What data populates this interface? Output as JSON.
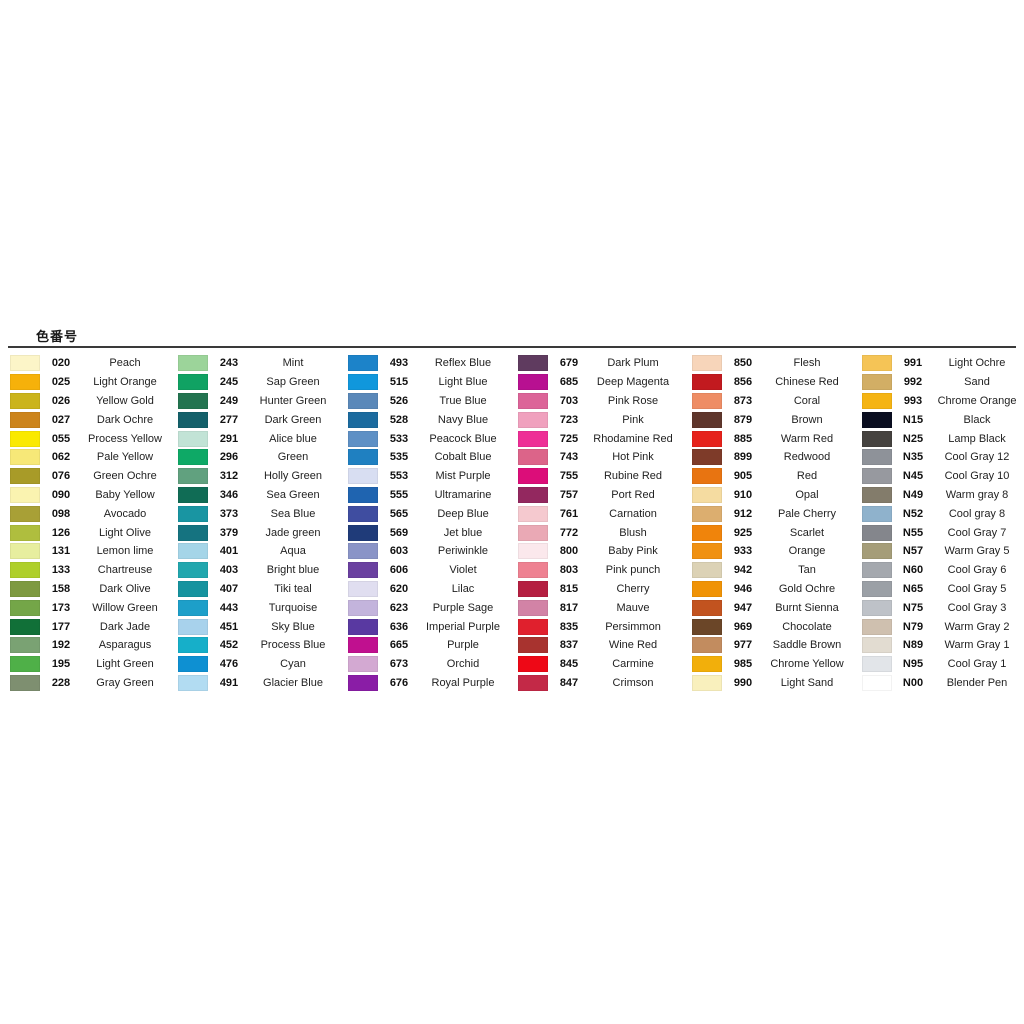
{
  "header": {
    "title": "色番号"
  },
  "styles": {
    "rule_color": "#3a3a3a",
    "background": "#ffffff",
    "text_color": "#1f1f1f"
  },
  "chart_data": {
    "type": "table",
    "title": "色番号",
    "description": "Marker color number chart: 6 columns × 18 rows, each row shows swatch color, color code, color name",
    "columns": [
      {
        "entries": [
          {
            "code": "020",
            "name": "Peach",
            "color": "#FCF5C8"
          },
          {
            "code": "025",
            "name": "Light Orange",
            "color": "#F6B10A"
          },
          {
            "code": "026",
            "name": "Yellow Gold",
            "color": "#CBB41C"
          },
          {
            "code": "027",
            "name": "Dark Ochre",
            "color": "#CC841C"
          },
          {
            "code": "055",
            "name": "Process Yellow",
            "color": "#FAE900"
          },
          {
            "code": "062",
            "name": "Pale Yellow",
            "color": "#F7E878"
          },
          {
            "code": "076",
            "name": "Green Ochre",
            "color": "#A89B28"
          },
          {
            "code": "090",
            "name": "Baby Yellow",
            "color": "#FAF3B0"
          },
          {
            "code": "098",
            "name": "Avocado",
            "color": "#A8A036"
          },
          {
            "code": "126",
            "name": "Light Olive",
            "color": "#AFBE3E"
          },
          {
            "code": "131",
            "name": "Lemon lime",
            "color": "#E7EE9F"
          },
          {
            "code": "133",
            "name": "Chartreuse",
            "color": "#AFCF2A"
          },
          {
            "code": "158",
            "name": "Dark Olive",
            "color": "#7E9A41"
          },
          {
            "code": "173",
            "name": "Willow Green",
            "color": "#74A648"
          },
          {
            "code": "177",
            "name": "Dark Jade",
            "color": "#117038"
          },
          {
            "code": "192",
            "name": "Asparagus",
            "color": "#7AA273"
          },
          {
            "code": "195",
            "name": "Light Green",
            "color": "#4FB048"
          },
          {
            "code": "228",
            "name": "Gray Green",
            "color": "#7E8F70"
          }
        ]
      },
      {
        "entries": [
          {
            "code": "243",
            "name": "Mint",
            "color": "#9CD49A"
          },
          {
            "code": "245",
            "name": "Sap Green",
            "color": "#10A263"
          },
          {
            "code": "249",
            "name": "Hunter Green",
            "color": "#237450"
          },
          {
            "code": "277",
            "name": "Dark Green",
            "color": "#14606A"
          },
          {
            "code": "291",
            "name": "Alice blue",
            "color": "#C2E3D6"
          },
          {
            "code": "296",
            "name": "Green",
            "color": "#0EA966"
          },
          {
            "code": "312",
            "name": "Holly Green",
            "color": "#61A17F"
          },
          {
            "code": "346",
            "name": "Sea Green",
            "color": "#106C55"
          },
          {
            "code": "373",
            "name": "Sea Blue",
            "color": "#1995A2"
          },
          {
            "code": "379",
            "name": "Jade green",
            "color": "#157380"
          },
          {
            "code": "401",
            "name": "Aqua",
            "color": "#A5D5E8"
          },
          {
            "code": "403",
            "name": "Bright blue",
            "color": "#21A7AE"
          },
          {
            "code": "407",
            "name": "Tiki teal",
            "color": "#16939F"
          },
          {
            "code": "443",
            "name": "Turquoise",
            "color": "#1D9FC9"
          },
          {
            "code": "451",
            "name": "Sky Blue",
            "color": "#A8D2EC"
          },
          {
            "code": "452",
            "name": "Process Blue",
            "color": "#16AFC9"
          },
          {
            "code": "476",
            "name": "Cyan",
            "color": "#0E90D2"
          },
          {
            "code": "491",
            "name": "Glacier Blue",
            "color": "#B2DCF2"
          }
        ]
      },
      {
        "entries": [
          {
            "code": "493",
            "name": "Reflex Blue",
            "color": "#1C83C9"
          },
          {
            "code": "515",
            "name": "Light Blue",
            "color": "#1097DC"
          },
          {
            "code": "526",
            "name": "True Blue",
            "color": "#5A88B9"
          },
          {
            "code": "528",
            "name": "Navy Blue",
            "color": "#1B6B9F"
          },
          {
            "code": "533",
            "name": "Peacock Blue",
            "color": "#5E90C5"
          },
          {
            "code": "535",
            "name": "Cobalt Blue",
            "color": "#1F80C1"
          },
          {
            "code": "553",
            "name": "Mist Purple",
            "color": "#D8DEF2"
          },
          {
            "code": "555",
            "name": "Ultramarine",
            "color": "#1F64B0"
          },
          {
            "code": "565",
            "name": "Deep Blue",
            "color": "#3F4DA0"
          },
          {
            "code": "569",
            "name": "Jet blue",
            "color": "#1F3B79"
          },
          {
            "code": "603",
            "name": "Periwinkle",
            "color": "#8A94C7"
          },
          {
            "code": "606",
            "name": "Violet",
            "color": "#6A40A0"
          },
          {
            "code": "620",
            "name": "Lilac",
            "color": "#E0DEF0"
          },
          {
            "code": "623",
            "name": "Purple Sage",
            "color": "#C3B4DC"
          },
          {
            "code": "636",
            "name": "Imperial Purple",
            "color": "#5939A1"
          },
          {
            "code": "665",
            "name": "Purple",
            "color": "#C0108F"
          },
          {
            "code": "673",
            "name": "Orchid",
            "color": "#D3A9D2"
          },
          {
            "code": "676",
            "name": "Royal Purple",
            "color": "#8A1DA6"
          }
        ]
      },
      {
        "entries": [
          {
            "code": "679",
            "name": "Dark Plum",
            "color": "#5F3B5F"
          },
          {
            "code": "685",
            "name": "Deep Magenta",
            "color": "#B81091"
          },
          {
            "code": "703",
            "name": "Pink Rose",
            "color": "#DC6498"
          },
          {
            "code": "723",
            "name": "Pink",
            "color": "#F0A1BE"
          },
          {
            "code": "725",
            "name": "Rhodamine Red",
            "color": "#EE2E96"
          },
          {
            "code": "743",
            "name": "Hot Pink",
            "color": "#DC6489"
          },
          {
            "code": "755",
            "name": "Rubine Red",
            "color": "#DC0D79"
          },
          {
            "code": "757",
            "name": "Port Red",
            "color": "#93285F"
          },
          {
            "code": "761",
            "name": "Carnation",
            "color": "#F5C9CF"
          },
          {
            "code": "772",
            "name": "Blush",
            "color": "#EAA9B5"
          },
          {
            "code": "800",
            "name": "Baby Pink",
            "color": "#FBE8EC"
          },
          {
            "code": "803",
            "name": "Pink punch",
            "color": "#EE8191"
          },
          {
            "code": "815",
            "name": "Cherry",
            "color": "#B51F41"
          },
          {
            "code": "817",
            "name": "Mauve",
            "color": "#D283A6"
          },
          {
            "code": "835",
            "name": "Persimmon",
            "color": "#E0202D"
          },
          {
            "code": "837",
            "name": "Wine Red",
            "color": "#A8332F"
          },
          {
            "code": "845",
            "name": "Carmine",
            "color": "#EE0816"
          },
          {
            "code": "847",
            "name": "Crimson",
            "color": "#C32947"
          }
        ]
      },
      {
        "entries": [
          {
            "code": "850",
            "name": "Flesh",
            "color": "#F7D5BA"
          },
          {
            "code": "856",
            "name": "Chinese Red",
            "color": "#C21A1F"
          },
          {
            "code": "873",
            "name": "Coral",
            "color": "#EE8D65"
          },
          {
            "code": "879",
            "name": "Brown",
            "color": "#5F362C"
          },
          {
            "code": "885",
            "name": "Warm Red",
            "color": "#E6221B"
          },
          {
            "code": "899",
            "name": "Redwood",
            "color": "#7E3B29"
          },
          {
            "code": "905",
            "name": "Red",
            "color": "#E87411"
          },
          {
            "code": "910",
            "name": "Opal",
            "color": "#F5DCA1"
          },
          {
            "code": "912",
            "name": "Pale Cherry",
            "color": "#DCAE6F"
          },
          {
            "code": "925",
            "name": "Scarlet",
            "color": "#F0840B"
          },
          {
            "code": "933",
            "name": "Orange",
            "color": "#F09112"
          },
          {
            "code": "942",
            "name": "Tan",
            "color": "#DCD2B5"
          },
          {
            "code": "946",
            "name": "Gold Ochre",
            "color": "#F09306"
          },
          {
            "code": "947",
            "name": "Burnt Sienna",
            "color": "#C2531F"
          },
          {
            "code": "969",
            "name": "Chocolate",
            "color": "#6B4628"
          },
          {
            "code": "977",
            "name": "Saddle Brown",
            "color": "#C28C5F"
          },
          {
            "code": "985",
            "name": "Chrome Yellow",
            "color": "#F2AF0B"
          },
          {
            "code": "990",
            "name": "Light Sand",
            "color": "#F9F0BD"
          }
        ]
      },
      {
        "entries": [
          {
            "code": "991",
            "name": "Light Ochre",
            "color": "#F5C456"
          },
          {
            "code": "992",
            "name": "Sand",
            "color": "#D2AE65"
          },
          {
            "code": "993",
            "name": "Chrome Orange",
            "color": "#F5B413"
          },
          {
            "code": "N15",
            "name": "Black",
            "color": "#0A0E20"
          },
          {
            "code": "N25",
            "name": "Lamp Black",
            "color": "#45423F"
          },
          {
            "code": "N35",
            "name": "Cool Gray 12",
            "color": "#8E9299"
          },
          {
            "code": "N45",
            "name": "Cool Gray 10",
            "color": "#97999F"
          },
          {
            "code": "N49",
            "name": "Warm gray 8",
            "color": "#837C6B"
          },
          {
            "code": "N52",
            "name": "Cool gray 8",
            "color": "#8FB2CC"
          },
          {
            "code": "N55",
            "name": "Cool Gray 7",
            "color": "#84868C"
          },
          {
            "code": "N57",
            "name": "Warm Gray 5",
            "color": "#A59D79"
          },
          {
            "code": "N60",
            "name": "Cool Gray 6",
            "color": "#A4A8AE"
          },
          {
            "code": "N65",
            "name": "Cool Gray 5",
            "color": "#9BA0A6"
          },
          {
            "code": "N75",
            "name": "Cool Gray 3",
            "color": "#BEC2C8"
          },
          {
            "code": "N79",
            "name": "Warm Gray 2",
            "color": "#CFC0AF"
          },
          {
            "code": "N89",
            "name": "Warm Gray 1",
            "color": "#E2DCD1"
          },
          {
            "code": "N95",
            "name": "Cool Gray 1",
            "color": "#E2E5E9"
          },
          {
            "code": "N00",
            "name": "Blender Pen",
            "color": "#FFFFFF"
          }
        ]
      }
    ]
  }
}
